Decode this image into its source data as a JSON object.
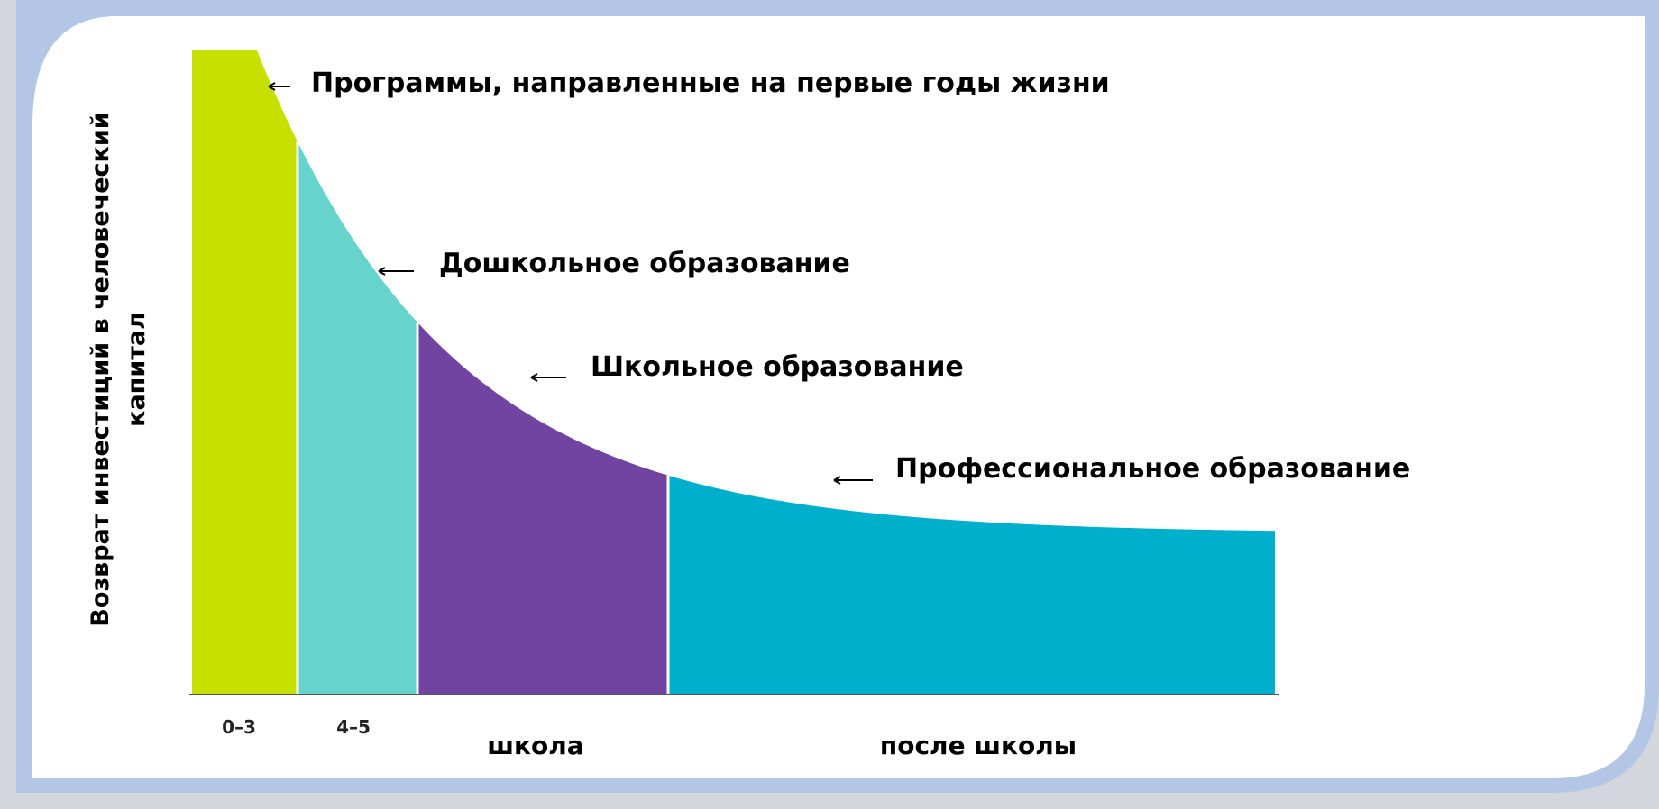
{
  "chart_data": {
    "type": "area",
    "xlabel": "",
    "ylabel": "Возврат инвестиций в человеческий капитал",
    "x_categories": [
      "0–3",
      "4–5",
      "школа",
      "после школы"
    ],
    "segments": [
      {
        "name": "Программы, направленные на первые годы жизни",
        "x_label": "0–3",
        "color": "#c8e000"
      },
      {
        "name": "Дошкольное образование",
        "x_label": "4–5",
        "color": "#66d3cc"
      },
      {
        "name": "Школьное образование",
        "x_label": "школа",
        "color": "#7244a2"
      },
      {
        "name": "Профессиональное образование",
        "x_label": "после школы",
        "color": "#00afcc"
      }
    ],
    "grid": false,
    "legend": "none"
  },
  "colors": {
    "frame_outer": "#b3c6e6",
    "panel": "#ffffff",
    "axis": "#555555"
  }
}
